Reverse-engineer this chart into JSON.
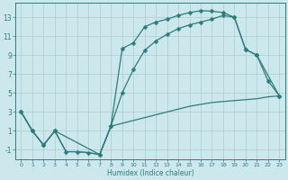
{
  "bg_color": "#cce8ec",
  "grid_color": "#aaccd0",
  "line_color": "#2d7c7c",
  "xlabel": "Humidex (Indice chaleur)",
  "xlim": [
    -0.5,
    23.5
  ],
  "ylim": [
    -2.0,
    14.5
  ],
  "xticks": [
    0,
    1,
    2,
    3,
    4,
    5,
    6,
    7,
    8,
    9,
    10,
    11,
    12,
    13,
    14,
    15,
    16,
    17,
    18,
    19,
    20,
    21,
    22,
    23
  ],
  "yticks": [
    -1,
    1,
    3,
    5,
    7,
    9,
    11,
    13
  ],
  "curve1_x": [
    0,
    1,
    2,
    3,
    4,
    5,
    6,
    7,
    8,
    9,
    10,
    11,
    12,
    13,
    14,
    15,
    16,
    17,
    18,
    19,
    20,
    21,
    22,
    23
  ],
  "curve1_y": [
    3,
    1,
    -0.5,
    1.0,
    -1.2,
    -1.2,
    -1.3,
    -1.5,
    1.5,
    9.7,
    10.3,
    12.0,
    12.5,
    12.8,
    13.2,
    13.5,
    13.7,
    13.65,
    13.5,
    13.0,
    9.6,
    9.0,
    6.3,
    4.7
  ],
  "curve2_x": [
    0,
    1,
    2,
    3,
    7,
    8,
    9,
    10,
    11,
    12,
    13,
    14,
    15,
    16,
    17,
    18,
    19,
    20,
    21,
    23
  ],
  "curve2_y": [
    3,
    1,
    -0.5,
    1.0,
    -1.5,
    1.5,
    5.0,
    7.5,
    9.5,
    10.5,
    11.2,
    11.8,
    12.2,
    12.5,
    12.8,
    13.2,
    13.0,
    9.6,
    9.0,
    4.7
  ],
  "curve3_x": [
    0,
    1,
    2,
    3,
    4,
    5,
    6,
    7,
    8,
    9,
    10,
    11,
    12,
    13,
    14,
    15,
    16,
    17,
    18,
    19,
    20,
    21,
    22,
    23
  ],
  "curve3_y": [
    3,
    1,
    -0.5,
    1.0,
    -1.2,
    -1.2,
    -1.3,
    -1.5,
    1.5,
    1.8,
    2.1,
    2.4,
    2.7,
    3.0,
    3.3,
    3.6,
    3.8,
    4.0,
    4.1,
    4.2,
    4.3,
    4.4,
    4.6,
    4.7
  ]
}
